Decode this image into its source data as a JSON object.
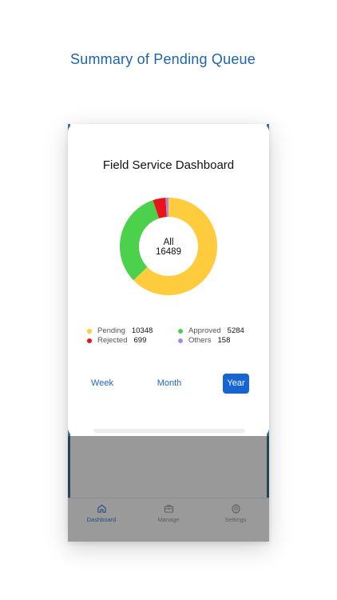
{
  "headline": "Summary of Pending Queue",
  "dashboard": {
    "title": "Field Service Dashboard",
    "center_label": "All",
    "center_total": "16489",
    "legend": [
      {
        "label": "Pending",
        "count": "10348",
        "color": "#FFCC3D"
      },
      {
        "label": "Approved",
        "count": "5284",
        "color": "#4CD14C"
      },
      {
        "label": "Rejected",
        "count": "699",
        "color": "#E8141C"
      },
      {
        "label": "Others",
        "count": "158",
        "color": "#A98BE6"
      }
    ],
    "range_tabs": [
      {
        "label": "Week",
        "active": false
      },
      {
        "label": "Month",
        "active": false
      },
      {
        "label": "Year",
        "active": true
      }
    ]
  },
  "chart_data": {
    "type": "pie",
    "categories": [
      "Pending",
      "Approved",
      "Rejected",
      "Others"
    ],
    "values": [
      10348,
      5284,
      699,
      158
    ],
    "colors": [
      "#FFCC3D",
      "#4CD14C",
      "#E8141C",
      "#A98BE6"
    ],
    "title": "Field Service Dashboard",
    "legend_position": "bottom"
  },
  "tabbar": {
    "items": [
      {
        "label": "Dashboard",
        "icon": "home-icon",
        "active": true
      },
      {
        "label": "Manage",
        "icon": "briefcase-icon",
        "active": false
      },
      {
        "label": "Settings",
        "icon": "gear-icon",
        "active": false
      }
    ]
  },
  "colors": {
    "accent": "#1665D0",
    "headline": "#1E64A8",
    "tab_active": "#1F4E86"
  }
}
